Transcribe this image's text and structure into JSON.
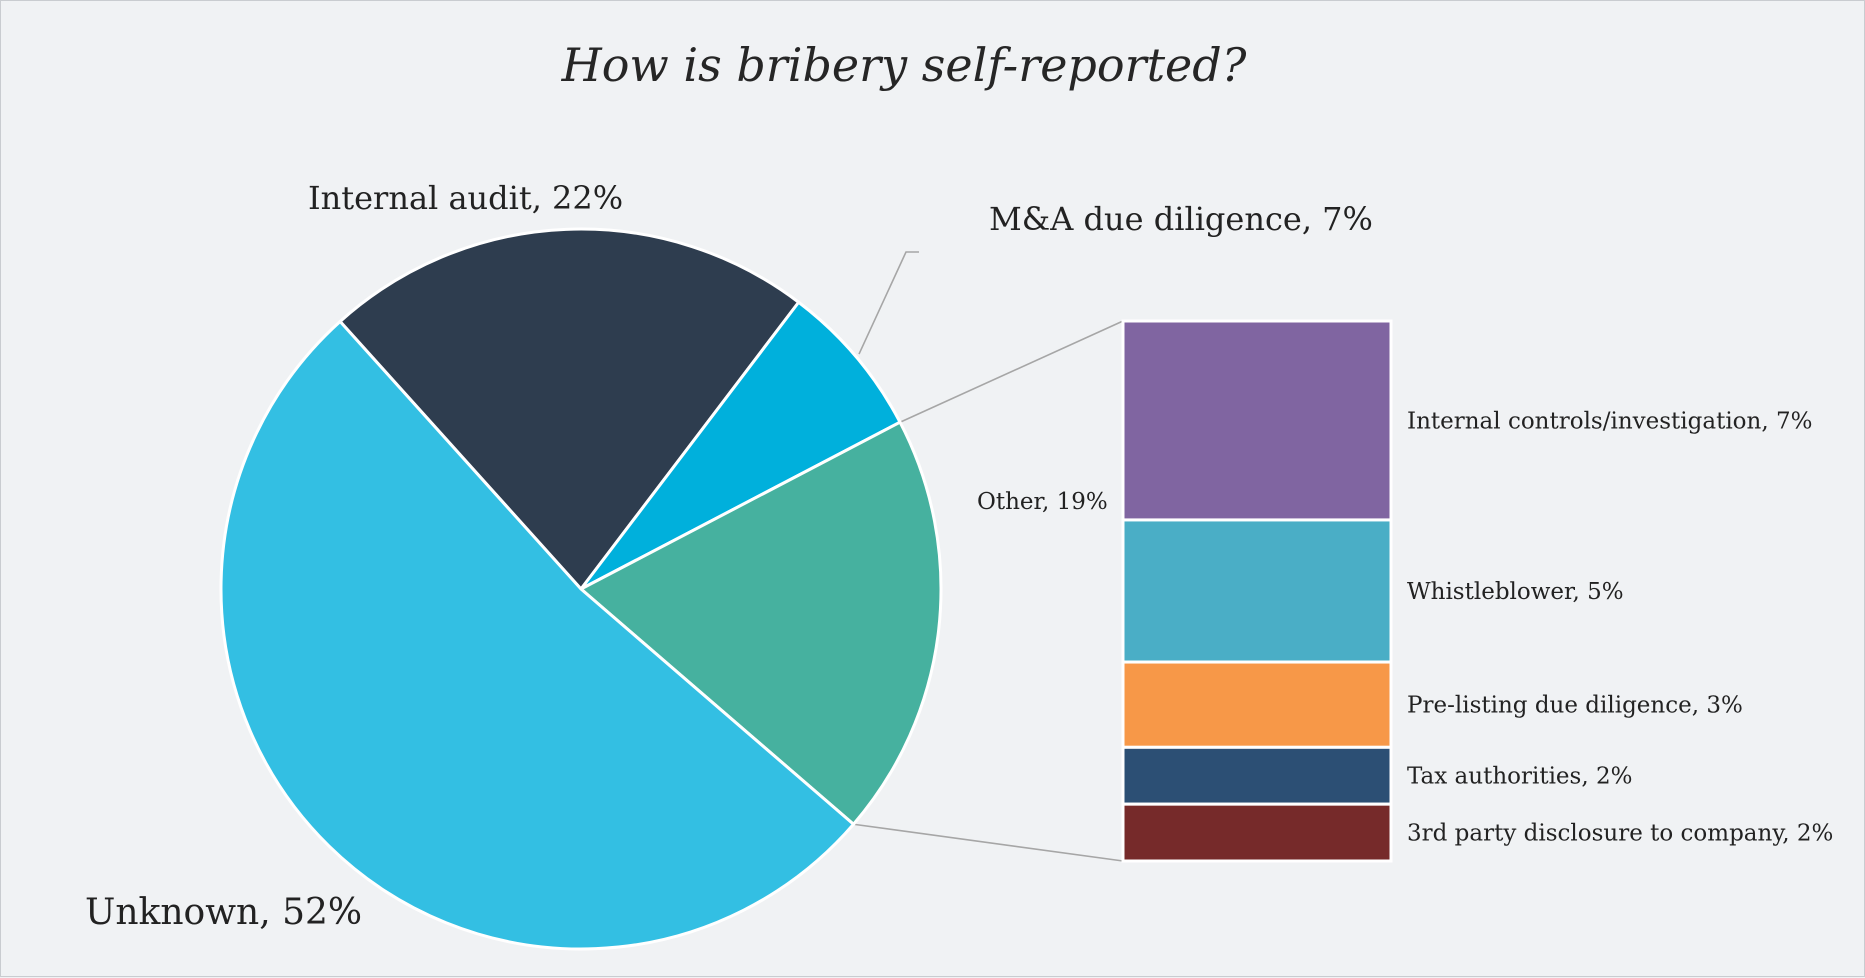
{
  "chart_data": {
    "type": "pie",
    "title": "How is bribery self-reported?",
    "slices": [
      {
        "label": "Internal audit, 22%",
        "value": 22,
        "color": "#2e3d4f"
      },
      {
        "label": "M&A due diligence, 7%",
        "value": 7,
        "color": "#00b0dc"
      },
      {
        "label": "Other, 19%",
        "value": 19,
        "color": "#46b19f"
      },
      {
        "label": "Unknown, 52%",
        "value": 52,
        "color": "#33bfe3"
      }
    ],
    "breakdown": {
      "parent": "Other, 19%",
      "items": [
        {
          "label": "Internal controls/investigation, 7%",
          "value": 7,
          "color": "#8065a1"
        },
        {
          "label": "Whistleblower, 5%",
          "value": 5,
          "color": "#4aaec6"
        },
        {
          "label": "Pre-listing due diligence, 3%",
          "value": 3,
          "color": "#f79848"
        },
        {
          "label": "Tax authorities, 2%",
          "value": 2,
          "color": "#2c4f74"
        },
        {
          "label": "3rd party disclosure to company, 2%",
          "value": 2,
          "color": "#762a2a"
        }
      ]
    }
  }
}
